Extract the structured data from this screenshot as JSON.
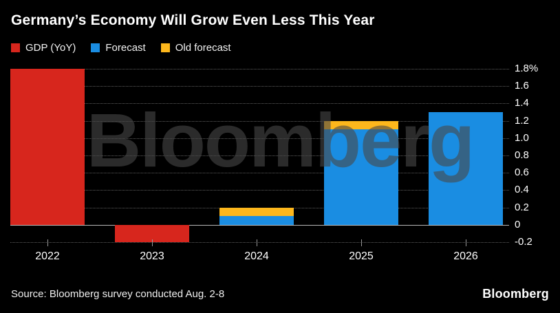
{
  "title": "Germany’s Economy Will Grow Even Less This Year",
  "watermark": {
    "text": "Bloomberg"
  },
  "source": {
    "text": "Source: Bloomberg survey conducted Aug. 2-8"
  },
  "footer": {
    "logo_text": "Bloomberg"
  },
  "colors": {
    "background": "#000000",
    "text": "#ffffff",
    "grid": "#5f5f5f",
    "axis": "#b8b8b8",
    "watermark_rgba": "rgba(72,72,72,0.6)",
    "gdp": "#d7261d",
    "forecast": "#1a8de2",
    "old_forecast": "#fdb71c"
  },
  "chart_data": {
    "type": "bar",
    "title": "Germany’s Economy Will Grow Even Less This Year",
    "categories": [
      "2022",
      "2023",
      "2024",
      "2025",
      "2026"
    ],
    "series": [
      {
        "name": "GDP (YoY)",
        "color": "#d7261d",
        "values": [
          1.8,
          -0.2,
          null,
          null,
          null
        ]
      },
      {
        "name": "Forecast",
        "color": "#1a8de2",
        "values": [
          null,
          null,
          0.1,
          1.1,
          1.3
        ]
      },
      {
        "name": "Old forecast",
        "color": "#fdb71c",
        "values": [
          null,
          null,
          0.2,
          1.2,
          null
        ]
      }
    ],
    "xlabel": "",
    "ylabel": "",
    "unit": "percent",
    "ylim": [
      -0.2,
      1.8
    ],
    "yticks": [
      1.8,
      1.6,
      1.4,
      1.2,
      1.0,
      0.8,
      0.6,
      0.4,
      0.2,
      0,
      -0.2
    ],
    "ytick_labels": [
      "1.8%",
      "1.6",
      "1.4",
      "1.2",
      "1.0",
      "0.8",
      "0.6",
      "0.4",
      "0.2",
      "0",
      "-0.2"
    ],
    "grid": "dotted-horizontal",
    "legend_position": "top-left",
    "notes": "Old forecast drawn as a cap segment stacked above Forecast for 2024 and 2025"
  }
}
